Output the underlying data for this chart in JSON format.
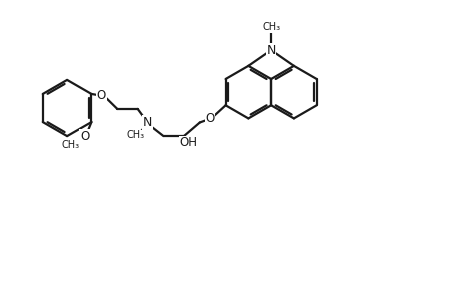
{
  "bg_color": "#ffffff",
  "line_color": "#1a1a1a",
  "line_width": 1.6,
  "font_size": 8.5,
  "figsize": [
    4.56,
    2.84
  ],
  "dpi": 100,
  "xlim": [
    0,
    100
  ],
  "ylim": [
    0,
    62
  ]
}
